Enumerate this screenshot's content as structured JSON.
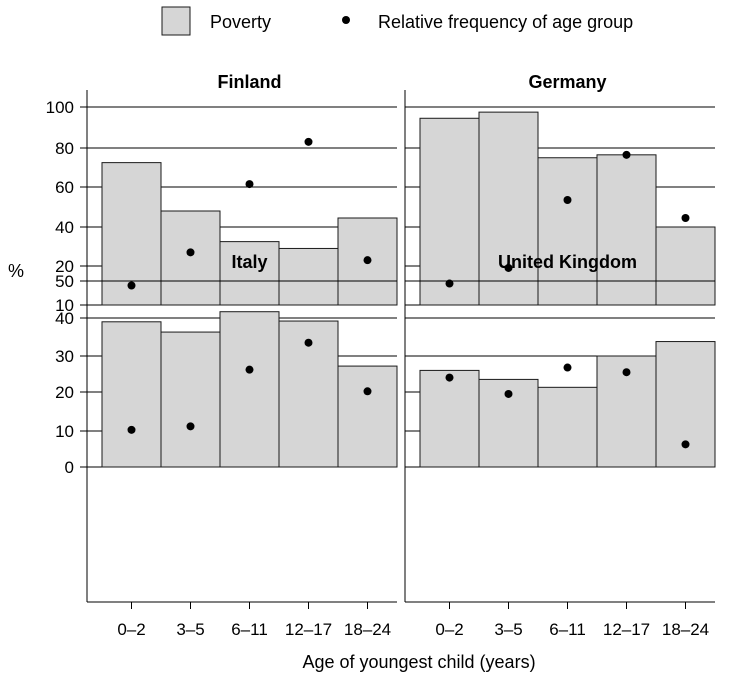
{
  "legend": {
    "bar_label": "Poverty",
    "dot_label": "Relative frequency of age group"
  },
  "y_unit_label": "%",
  "x_axis_label": "Age of youngest child (years)",
  "colors": {
    "bar_fill": "#d6d6d6",
    "bar_stroke": "#1a1a1a",
    "dot": "#000000",
    "axis": "#000000"
  },
  "chart_data": [
    {
      "type": "bar",
      "title": "Finland",
      "categories": [
        "0–2",
        "3–5",
        "6–11",
        "12–17",
        "18–24"
      ],
      "y_ticks": [
        "100",
        "80",
        "60",
        "40",
        "20",
        "10"
      ],
      "y_tick_values": [
        100,
        80,
        60,
        40,
        20,
        10
      ],
      "series": [
        {
          "name": "Poverty",
          "kind": "bar",
          "values": [
            72.5,
            48,
            32.5,
            29,
            44.5
          ]
        },
        {
          "name": "Relative frequency of age group",
          "kind": "dot",
          "values": [
            15,
            27,
            61.5,
            83,
            23
          ]
        }
      ]
    },
    {
      "type": "bar",
      "title": "Germany",
      "categories": [
        "0–2",
        "3–5",
        "6–11",
        "12–17",
        "18–24"
      ],
      "y_ticks": [
        "100",
        "80",
        "60",
        "40",
        "20",
        "10"
      ],
      "y_tick_values": [
        100,
        80,
        60,
        40,
        20,
        10
      ],
      "series": [
        {
          "name": "Poverty",
          "kind": "bar",
          "values": [
            94.5,
            97.5,
            75,
            76.5,
            40
          ]
        },
        {
          "name": "Relative frequency of age group",
          "kind": "dot",
          "values": [
            15.5,
            19.5,
            53.5,
            76.5,
            44.5
          ]
        }
      ]
    },
    {
      "type": "bar",
      "title": "Italy",
      "categories": [
        "0–2",
        "3–5",
        "6–11",
        "12–17",
        "18–24"
      ],
      "y_ticks": [
        "50",
        "40",
        "30",
        "20",
        "10",
        "0"
      ],
      "y_tick_values": [
        50,
        40,
        30,
        20,
        10,
        0
      ],
      "series": [
        {
          "name": "Poverty",
          "kind": "bar",
          "values": [
            39,
            36.3,
            41.7,
            39.2,
            27.2
          ]
        },
        {
          "name": "Relative frequency of age group",
          "kind": "dot",
          "values": [
            10.3,
            11.2,
            26.2,
            33.5,
            20.2
          ]
        }
      ]
    },
    {
      "type": "bar",
      "title": "United Kingdom",
      "categories": [
        "0–2",
        "3–5",
        "6–11",
        "12–17",
        "18–24"
      ],
      "y_ticks": [
        "50",
        "40",
        "30",
        "20",
        "10",
        "0"
      ],
      "y_tick_values": [
        50,
        40,
        30,
        20,
        10,
        0
      ],
      "series": [
        {
          "name": "Poverty",
          "kind": "bar",
          "values": [
            26,
            23.5,
            21.3,
            30,
            33.8
          ]
        },
        {
          "name": "Relative frequency of age group",
          "kind": "dot",
          "values": [
            24,
            19.5,
            26.8,
            25.5,
            6.3
          ]
        }
      ]
    }
  ]
}
